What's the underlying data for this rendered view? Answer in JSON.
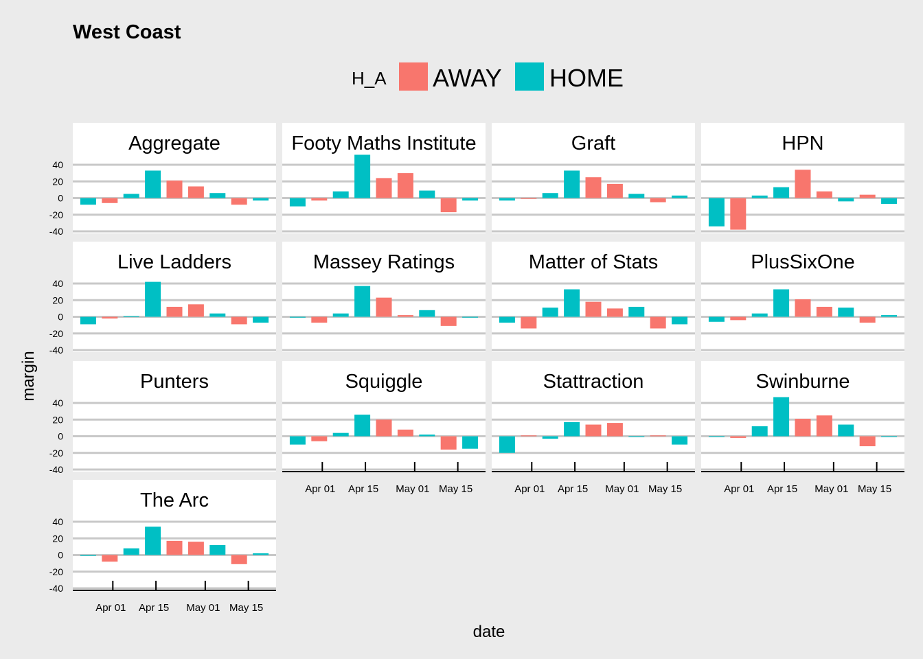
{
  "chart_data": {
    "type": "bar",
    "title": "West Coast",
    "xlabel": "date",
    "ylabel": "margin",
    "ylim": [
      -40,
      40
    ],
    "yticks": [
      40,
      20,
      0,
      -20,
      -40
    ],
    "ytick_labels": [
      "40",
      "20",
      "0",
      "-20",
      "-40"
    ],
    "x": [
      "Mar 24",
      "Mar 31",
      "Apr 07",
      "Apr 14",
      "Apr 21",
      "Apr 28",
      "May 05",
      "May 12",
      "May 19"
    ],
    "xtick_labels": [
      "Apr 01",
      "Apr 15",
      "May 01",
      "May 15"
    ],
    "legend": {
      "title": "H_A",
      "placement": "top",
      "entries": [
        "AWAY",
        "HOME"
      ]
    },
    "colors": {
      "AWAY": "#f8766d",
      "HOME": "#00bfc4"
    },
    "home_away": [
      "HOME",
      "AWAY",
      "HOME",
      "HOME",
      "AWAY",
      "AWAY",
      "HOME",
      "AWAY",
      "HOME"
    ],
    "facets": [
      {
        "name": "Aggregate",
        "values": [
          -8,
          -6,
          5,
          33,
          21,
          14,
          6,
          -8,
          -3
        ]
      },
      {
        "name": "Footy Maths Institute",
        "values": [
          -10,
          -3,
          8,
          52,
          24,
          30,
          9,
          -17,
          -3
        ]
      },
      {
        "name": "Graft",
        "values": [
          -3,
          -1,
          6,
          33,
          25,
          17,
          5,
          -5,
          3
        ]
      },
      {
        "name": "HPN",
        "values": [
          -34,
          -38,
          3,
          13,
          34,
          8,
          -4,
          4,
          -7
        ]
      },
      {
        "name": "Live Ladders",
        "values": [
          -9,
          -2,
          1,
          42,
          12,
          15,
          4,
          -9,
          -7
        ]
      },
      {
        "name": "Massey Ratings",
        "values": [
          -1,
          -7,
          4,
          37,
          23,
          2,
          8,
          -11,
          -1
        ]
      },
      {
        "name": "Matter of Stats",
        "values": [
          -7,
          -14,
          11,
          33,
          18,
          10,
          12,
          -14,
          -9
        ]
      },
      {
        "name": "PlusSixOne",
        "values": [
          -6,
          -4,
          4,
          33,
          21,
          12,
          11,
          -7,
          2
        ]
      },
      {
        "name": "Punters",
        "values": []
      },
      {
        "name": "Squiggle",
        "values": [
          -10,
          -6,
          4,
          26,
          20,
          8,
          2,
          -16,
          -15
        ]
      },
      {
        "name": "Stattraction",
        "values": [
          -20,
          1,
          -3,
          17,
          14,
          16,
          -1,
          1,
          -10
        ]
      },
      {
        "name": "Swinburne",
        "values": [
          -1,
          -2,
          12,
          47,
          21,
          25,
          14,
          -12,
          -1
        ]
      },
      {
        "name": "The Arc",
        "values": [
          -1,
          -8,
          8,
          34,
          17,
          16,
          12,
          -11,
          2
        ]
      }
    ]
  }
}
